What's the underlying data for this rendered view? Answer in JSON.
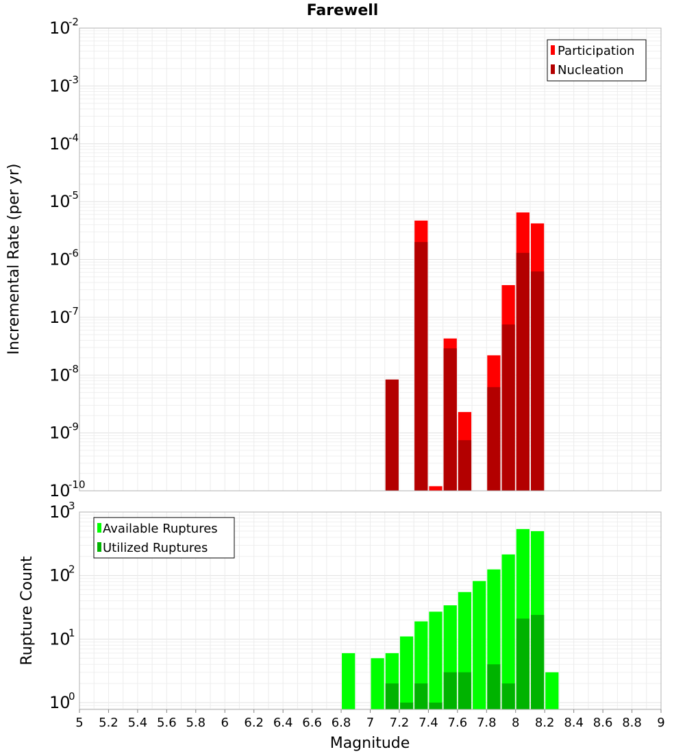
{
  "chart_data": [
    {
      "type": "bar",
      "title": "Farewell",
      "xlabel": "",
      "ylabel": "Incremental Rate (per yr)",
      "yscale": "log",
      "ylim": [
        1e-10,
        0.01
      ],
      "xlim": [
        5,
        9
      ],
      "bin_width": 0.1,
      "legend_position": "top-right",
      "grid": true,
      "y_ticks": [
        {
          "base": "10",
          "exp": "-2"
        },
        {
          "base": "10",
          "exp": "-3"
        },
        {
          "base": "10",
          "exp": "-4"
        },
        {
          "base": "10",
          "exp": "-5"
        },
        {
          "base": "10",
          "exp": "-6"
        },
        {
          "base": "10",
          "exp": "-7"
        },
        {
          "base": "10",
          "exp": "-8"
        },
        {
          "base": "10",
          "exp": "-9"
        },
        {
          "base": "10",
          "exp": "-10"
        }
      ],
      "series": [
        {
          "name": "Participation",
          "color": "#ff0000",
          "x": [
            7.35,
            7.45,
            7.55,
            7.65,
            7.85,
            7.95,
            8.05,
            8.15
          ],
          "values": [
            4.7e-06,
            1.2e-10,
            4.3e-08,
            2.3e-09,
            2.2e-08,
            3.6e-07,
            6.5e-06,
            4.2e-06
          ]
        },
        {
          "name": "Nucleation",
          "color": "#b30000",
          "x": [
            7.15,
            7.35,
            7.55,
            7.65,
            7.85,
            7.95,
            8.05,
            8.15
          ],
          "values": [
            8.4e-09,
            2e-06,
            2.9e-08,
            7.5e-10,
            6.2e-09,
            7.5e-08,
            1.3e-06,
            6.2e-07
          ]
        }
      ]
    },
    {
      "type": "bar",
      "title": "",
      "xlabel": "Magnitude",
      "ylabel": "Rupture Count",
      "yscale": "log",
      "ylim": [
        0.78,
        1000
      ],
      "xlim": [
        5,
        9
      ],
      "bin_width": 0.1,
      "legend_position": "top-left",
      "grid": true,
      "x_ticks": [
        "5",
        "5.2",
        "5.4",
        "5.6",
        "5.8",
        "6",
        "6.2",
        "6.4",
        "6.6",
        "6.8",
        "7",
        "7.2",
        "7.4",
        "7.6",
        "7.8",
        "8",
        "8.2",
        "8.4",
        "8.6",
        "8.8",
        "9"
      ],
      "y_ticks": [
        {
          "base": "10",
          "exp": "3"
        },
        {
          "base": "10",
          "exp": "2"
        },
        {
          "base": "10",
          "exp": "1"
        },
        {
          "base": "10",
          "exp": "0"
        }
      ],
      "series": [
        {
          "name": "Available Ruptures",
          "color": "#00ff00",
          "x": [
            6.85,
            7.05,
            7.15,
            7.25,
            7.35,
            7.45,
            7.55,
            7.65,
            7.75,
            7.85,
            7.95,
            8.05,
            8.15,
            8.25
          ],
          "values": [
            6,
            5,
            6,
            11,
            19,
            27,
            34,
            55,
            82,
            125,
            215,
            540,
            500,
            3
          ]
        },
        {
          "name": "Utilized Ruptures",
          "color": "#00b300",
          "x": [
            7.15,
            7.25,
            7.35,
            7.45,
            7.55,
            7.65,
            7.85,
            7.95,
            8.05,
            8.15
          ],
          "values": [
            2,
            1,
            2,
            1,
            3,
            3,
            4,
            2,
            21,
            24
          ]
        }
      ]
    }
  ]
}
